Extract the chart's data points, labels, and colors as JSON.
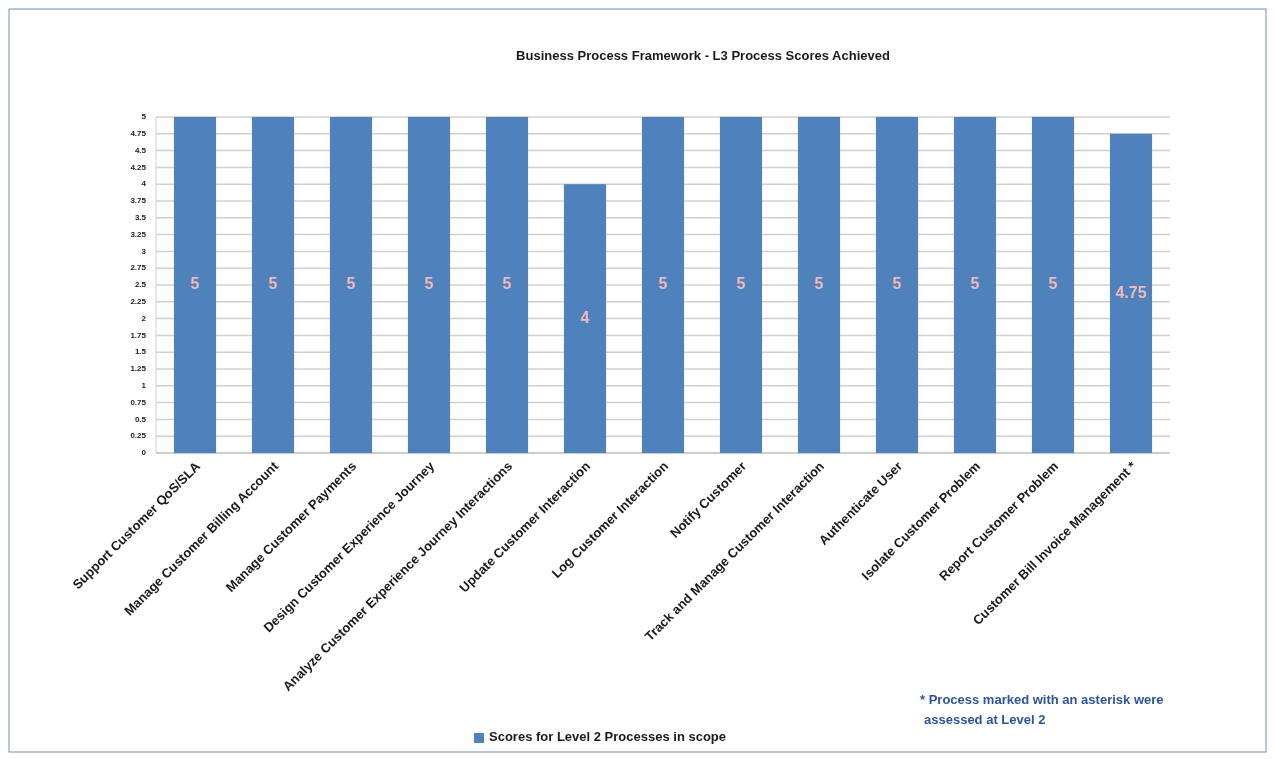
{
  "chart_data": {
    "type": "bar",
    "title": "Business Process Framework - L3 Process Scores Achieved",
    "categories": [
      "Support Customer QoS/SLA",
      "Manage Customer Billing Account",
      "Manage Customer Payments",
      "Design Customer Experience Journey",
      "Analyze Customer Experience Journey Interactions",
      "Update Customer Interaction",
      "Log Customer Interaction",
      "Notify Customer",
      "Track and Manage Customer Interaction",
      "Authenticate User",
      "Isolate Customer Problem",
      "Report Customer Problem",
      "Customer Bill Invoice Management *"
    ],
    "series": [
      {
        "name": "Scores for Level 2 Processes in scope",
        "color": "#4f81bd",
        "values": [
          5,
          5,
          5,
          5,
          5,
          4,
          5,
          5,
          5,
          5,
          5,
          5,
          4.75
        ]
      }
    ],
    "ylim": [
      0,
      5
    ],
    "yticks": [
      0,
      0.25,
      0.5,
      0.75,
      1,
      1.25,
      1.5,
      1.75,
      2,
      2.25,
      2.5,
      2.75,
      3,
      3.25,
      3.5,
      3.75,
      4,
      4.25,
      4.5,
      4.75,
      5
    ],
    "grid": "y",
    "legend": "bottom",
    "data_labels": true,
    "annotations": [
      "* Process marked with an asterisk were assessed at Level 2"
    ]
  }
}
